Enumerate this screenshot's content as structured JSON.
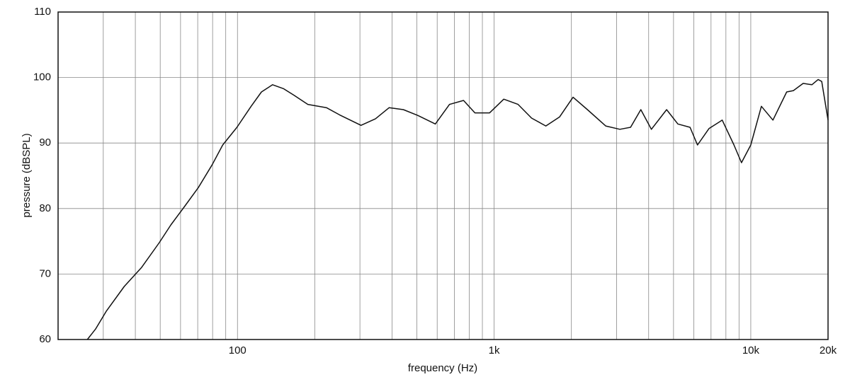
{
  "chart_data": {
    "type": "line",
    "xlabel": "frequency (Hz)",
    "ylabel": "pressure (dBSPL)",
    "xscale": "log",
    "grid": true,
    "xlim": [
      20,
      20000
    ],
    "ylim": [
      60,
      110
    ],
    "xticks": [
      100,
      {
        "value": 1000,
        "label": "1k"
      },
      {
        "value": 10000,
        "label": "10k"
      },
      {
        "value": 20000,
        "label": "20k"
      }
    ],
    "xgrid": [
      30,
      40,
      50,
      60,
      70,
      80,
      90,
      200,
      300,
      400,
      500,
      600,
      700,
      800,
      900,
      2000,
      3000,
      4000,
      5000,
      6000,
      7000,
      8000,
      9000
    ],
    "yticks": [
      60,
      70,
      80,
      90,
      100,
      110
    ],
    "series": [
      {
        "color": "#111111",
        "x": [
          26,
          28,
          30.8,
          36.2,
          42.3,
          49.6,
          55,
          62.2,
          70.4,
          79.7,
          87.6,
          99.5,
          113,
          124,
          137,
          151,
          166,
          188,
          222,
          250,
          303,
          345,
          390,
          443,
          505,
          590,
          670,
          760,
          842,
          960,
          1090,
          1240,
          1400,
          1590,
          1800,
          2030,
          2310,
          2720,
          3090,
          3400,
          3730,
          4100,
          4700,
          5200,
          5800,
          6200,
          6870,
          7740,
          8600,
          9200,
          10000,
          11000,
          12200,
          13800,
          14660,
          16000,
          17300,
          18300,
          18900,
          20000
        ],
        "values": [
          60,
          61.6,
          64.3,
          68.1,
          71.0,
          74.8,
          77.5,
          80.3,
          83.2,
          86.7,
          89.7,
          92.4,
          95.6,
          97.8,
          98.9,
          98.3,
          97.3,
          95.9,
          95.4,
          94.3,
          92.7,
          93.7,
          95.4,
          95.1,
          94.2,
          92.9,
          95.9,
          96.5,
          94.6,
          94.6,
          96.7,
          95.9,
          93.8,
          92.6,
          94.0,
          97.0,
          95.1,
          92.6,
          92.1,
          92.4,
          95.1,
          92.1,
          95.1,
          92.9,
          92.4,
          89.7,
          92.2,
          93.5,
          89.7,
          87.0,
          89.7,
          95.6,
          93.5,
          97.8,
          98.0,
          99.1,
          98.9,
          99.7,
          99.4,
          93.5
        ]
      }
    ]
  }
}
